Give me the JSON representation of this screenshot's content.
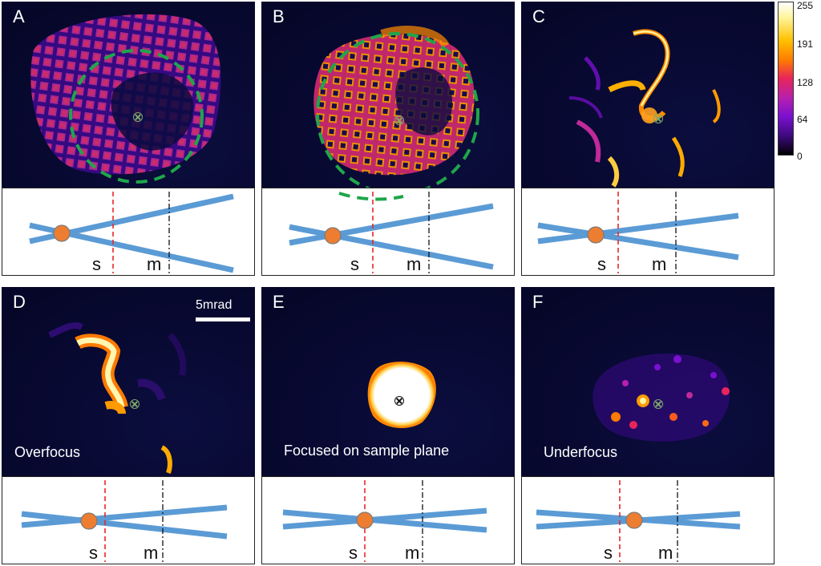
{
  "panels": [
    {
      "letter": "A",
      "caption": "",
      "s_label": "s",
      "m_label": "m"
    },
    {
      "letter": "B",
      "caption": "",
      "s_label": "s",
      "m_label": "m"
    },
    {
      "letter": "C",
      "caption": "",
      "s_label": "s",
      "m_label": "m"
    },
    {
      "letter": "D",
      "caption": "Overfocus",
      "s_label": "s",
      "m_label": "m"
    },
    {
      "letter": "E",
      "caption": "Focused on sample plane",
      "s_label": "s",
      "m_label": "m"
    },
    {
      "letter": "F",
      "caption": "Underfocus",
      "s_label": "s",
      "m_label": "m"
    }
  ],
  "colorbar": {
    "ticks": [
      "255",
      "191",
      "128",
      "64",
      "0"
    ],
    "colormap": "fire"
  },
  "scalebar": {
    "label": "5mrad"
  },
  "colors": {
    "beam": "#5b9bd5",
    "source_dot": "#ed7d31",
    "sample_line": "#e8272a",
    "monitor_line": "#111111",
    "circle": "#1fa64a"
  }
}
